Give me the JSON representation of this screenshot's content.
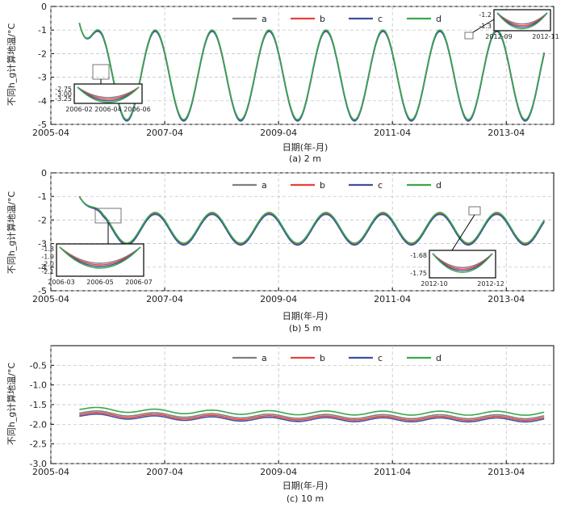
{
  "colors": {
    "a": "#7f7f7f",
    "b": "#e8403c",
    "c": "#3f4fa0",
    "d": "#3aa84a"
  },
  "chart_data": [
    {
      "type": "line",
      "caption": "(a) 2 m",
      "xlabel": "日期(年-月)",
      "ylabel": "不同h_g计算地温/°C",
      "ylim": [
        -5,
        0
      ],
      "yticks": [
        "0",
        "-1",
        "-2",
        "-3",
        "-4",
        "-5"
      ],
      "xticks": [
        "2005-04",
        "2007-04",
        "2009-04",
        "2011-04",
        "2013-04"
      ],
      "legend": [
        "a",
        "b",
        "c",
        "d"
      ],
      "series_model": {
        "start": "2005-10",
        "end": "2013-12",
        "amplitude": [
          1.9,
          1.9,
          1.9,
          1.9
        ],
        "mean": [
          -2.9,
          -2.93,
          -2.96,
          -2.9
        ]
      },
      "inset1": {
        "yticks": [
          "-2.75",
          "-3.00",
          "-3.25"
        ],
        "xticks": [
          "2006-02",
          "2006-04",
          "2006-06"
        ]
      },
      "inset2": {
        "yticks": [
          "-1.2",
          "-1.3"
        ],
        "xticks": [
          "2012-09",
          "2012-11"
        ]
      }
    },
    {
      "type": "line",
      "caption": "(b) 5 m",
      "xlabel": "日期(年-月)",
      "ylabel": "不同h_g计算地温/°C",
      "ylim": [
        -5,
        0
      ],
      "yticks": [
        "0",
        "-1",
        "-2",
        "-3",
        "-4",
        "-5"
      ],
      "xticks": [
        "2005-04",
        "2007-04",
        "2009-04",
        "2011-04",
        "2013-04"
      ],
      "legend": [
        "a",
        "b",
        "c",
        "d"
      ],
      "series_model": {
        "start": "2005-10",
        "end": "2013-12",
        "amplitude": [
          0.65,
          0.65,
          0.65,
          0.65
        ],
        "mean": [
          -2.35,
          -2.38,
          -2.41,
          -2.33
        ]
      },
      "inset1": {
        "yticks": [
          "-1.8",
          "-1.9",
          "-2.0",
          "-2.1"
        ],
        "xticks": [
          "2006-03",
          "2006-05",
          "2006-07"
        ]
      },
      "inset2": {
        "yticks": [
          "-1.68",
          "-1.75"
        ],
        "xticks": [
          "2012-10",
          "2012-12"
        ]
      }
    },
    {
      "type": "line",
      "caption": "(c) 10 m",
      "xlabel": "日期(年-月)",
      "ylabel": "不同h_g计算地温/°C",
      "ylim": [
        -3.0,
        0
      ],
      "yticks": [
        "-0.5",
        "-1.0",
        "-1.5",
        "-2.0",
        "-2.5",
        "-3.0"
      ],
      "xticks": [
        "2005-04",
        "2007-04",
        "2009-04",
        "2011-04",
        "2013-04"
      ],
      "legend": [
        "a",
        "b",
        "c",
        "d"
      ],
      "series_model": {
        "start": "2005-10",
        "end": "2013-12",
        "amplitude": [
          0.05,
          0.05,
          0.05,
          0.05
        ],
        "mean": [
          -1.81,
          -1.85,
          -1.89,
          -1.72
        ]
      }
    }
  ]
}
